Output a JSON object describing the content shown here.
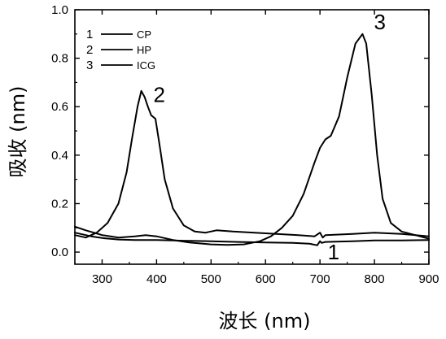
{
  "chart_data": {
    "type": "line",
    "xlabel": "波长 (nm)",
    "ylabel": "吸收 (nm)",
    "xlim": [
      250,
      900
    ],
    "ylim": [
      -0.05,
      1.0
    ],
    "x_ticks": [
      300,
      400,
      500,
      600,
      700,
      800,
      900
    ],
    "y_ticks": [
      0.0,
      0.2,
      0.4,
      0.6,
      0.8,
      1.0
    ],
    "grid": false,
    "legend_position": "top-left",
    "series": [
      {
        "name": "CP",
        "number": "1",
        "x": [
          250,
          280,
          300,
          330,
          360,
          400,
          450,
          500,
          550,
          600,
          650,
          680,
          695,
          700,
          703,
          710,
          730,
          760,
          800,
          850,
          900
        ],
        "y": [
          0.08,
          0.065,
          0.058,
          0.052,
          0.05,
          0.05,
          0.047,
          0.045,
          0.042,
          0.04,
          0.038,
          0.035,
          0.028,
          0.045,
          0.038,
          0.042,
          0.043,
          0.045,
          0.048,
          0.048,
          0.05
        ]
      },
      {
        "name": "HP",
        "number": "2",
        "x": [
          250,
          270,
          290,
          310,
          330,
          345,
          355,
          365,
          372,
          378,
          384,
          390,
          398,
          405,
          415,
          430,
          450,
          470,
          490,
          510,
          540,
          580,
          620,
          660,
          690,
          700,
          705,
          710,
          760,
          800,
          850,
          900
        ],
        "y": [
          0.07,
          0.06,
          0.08,
          0.12,
          0.2,
          0.33,
          0.47,
          0.6,
          0.665,
          0.64,
          0.6,
          0.565,
          0.55,
          0.45,
          0.3,
          0.18,
          0.11,
          0.085,
          0.08,
          0.09,
          0.085,
          0.08,
          0.075,
          0.07,
          0.065,
          0.08,
          0.06,
          0.07,
          0.075,
          0.08,
          0.075,
          0.065
        ]
      },
      {
        "name": "ICG",
        "number": "3",
        "x": [
          250,
          270,
          300,
          330,
          360,
          380,
          400,
          430,
          460,
          500,
          530,
          560,
          590,
          610,
          630,
          650,
          670,
          690,
          700,
          710,
          720,
          735,
          750,
          765,
          778,
          785,
          795,
          805,
          815,
          830,
          850,
          875,
          900
        ],
        "y": [
          0.105,
          0.09,
          0.07,
          0.06,
          0.065,
          0.07,
          0.065,
          0.05,
          0.04,
          0.032,
          0.03,
          0.032,
          0.045,
          0.065,
          0.1,
          0.15,
          0.24,
          0.37,
          0.43,
          0.465,
          0.48,
          0.56,
          0.72,
          0.86,
          0.9,
          0.86,
          0.65,
          0.4,
          0.22,
          0.12,
          0.085,
          0.07,
          0.055
        ]
      }
    ],
    "curve_labels": [
      {
        "text": "2",
        "x": 405,
        "y": 0.62
      },
      {
        "text": "3",
        "x": 810,
        "y": 0.92
      },
      {
        "text": "1",
        "x": 725,
        "y": -0.03
      }
    ]
  }
}
